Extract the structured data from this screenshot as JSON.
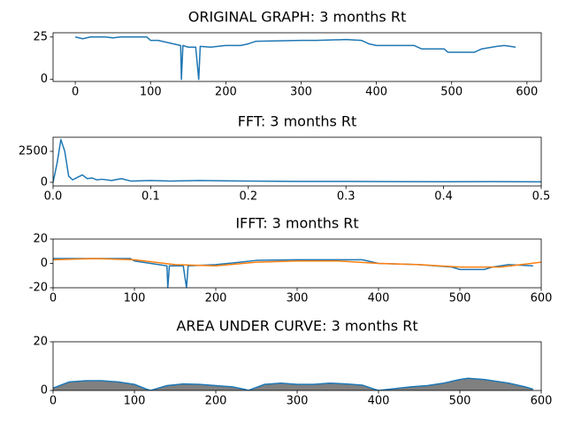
{
  "chart_data": [
    {
      "type": "line",
      "title": "ORIGINAL GRAPH: 3 months Rt",
      "color": "#1f77b4",
      "x": [
        0,
        10,
        20,
        40,
        50,
        60,
        95,
        100,
        110,
        120,
        130,
        140,
        141,
        143,
        150,
        160,
        164,
        166,
        180,
        200,
        220,
        230,
        240,
        300,
        320,
        360,
        380,
        390,
        400,
        450,
        460,
        490,
        495,
        530,
        540,
        560,
        570,
        585
      ],
      "values": [
        25,
        24,
        25,
        25,
        24.5,
        25,
        25,
        23,
        23,
        22,
        21,
        20,
        0,
        20,
        19,
        19,
        0,
        19.5,
        19,
        20,
        20,
        21,
        22.5,
        23,
        23,
        23.5,
        23,
        21,
        20,
        20,
        18,
        18,
        16,
        16,
        18,
        19.5,
        20,
        19
      ],
      "xlim": [
        -29.5,
        619
      ],
      "ylim": [
        -1.2,
        27.5
      ],
      "xticks": [
        0,
        100,
        200,
        300,
        400,
        500,
        600
      ],
      "yticks": [
        0,
        25
      ]
    },
    {
      "type": "line",
      "title": "FFT: 3 months Rt",
      "color": "#1f77b4",
      "x": [
        0,
        0.004,
        0.008,
        0.012,
        0.016,
        0.02,
        0.025,
        0.03,
        0.035,
        0.04,
        0.045,
        0.05,
        0.06,
        0.07,
        0.08,
        0.1,
        0.12,
        0.15,
        0.2,
        0.25,
        0.3,
        0.35,
        0.4,
        0.45,
        0.5
      ],
      "values": [
        0,
        1500,
        3450,
        2500,
        500,
        200,
        400,
        600,
        300,
        350,
        200,
        250,
        150,
        300,
        100,
        150,
        100,
        150,
        100,
        80,
        80,
        60,
        50,
        60,
        40
      ],
      "xlim": [
        0,
        0.5
      ],
      "ylim": [
        -290,
        3640
      ],
      "xticks": [
        {
          "value": 0,
          "label": "0.0"
        },
        0.1,
        0.2,
        0.3,
        0.4,
        0.5
      ],
      "yticks": [
        0,
        2500
      ]
    },
    {
      "type": "line",
      "title": "IFFT: 3 months Rt",
      "series": [
        {
          "color": "#1f77b4",
          "x": [
            0,
            40,
            95,
            100,
            130,
            140,
            141,
            143,
            160,
            164,
            166,
            200,
            230,
            250,
            300,
            380,
            400,
            450,
            490,
            500,
            530,
            540,
            560,
            590
          ],
          "values": [
            4,
            4,
            4,
            2,
            -1,
            -2,
            -20,
            -2,
            -2,
            -20,
            -2,
            -1,
            1,
            2.5,
            3,
            3,
            0,
            -1,
            -3,
            -5,
            -5,
            -3,
            -1,
            -2
          ]
        },
        {
          "color": "#ff7f0e",
          "x": [
            0,
            50,
            100,
            150,
            200,
            250,
            300,
            350,
            400,
            450,
            500,
            550,
            600
          ],
          "values": [
            3,
            4,
            3,
            -1,
            -2,
            1,
            2,
            2,
            0,
            -1,
            -3,
            -3,
            1
          ]
        }
      ],
      "xlim": [
        0,
        600
      ],
      "ylim": [
        -20,
        20
      ],
      "xticks": [
        0,
        100,
        200,
        300,
        400,
        500,
        600
      ],
      "yticks": [
        -20,
        0,
        20
      ]
    },
    {
      "type": "area",
      "title": "AREA UNDER CURVE: 3 months Rt",
      "color": "#1f77b4",
      "fill": "#808080",
      "x": [
        0,
        20,
        40,
        60,
        80,
        100,
        115,
        120,
        140,
        160,
        180,
        200,
        220,
        235,
        240,
        260,
        280,
        300,
        320,
        340,
        360,
        380,
        395,
        400,
        440,
        460,
        480,
        500,
        510,
        530,
        560,
        580,
        590
      ],
      "values": [
        1,
        3.5,
        4,
        4,
        3.5,
        2.5,
        0.5,
        0,
        2,
        2.7,
        2.5,
        2,
        1.5,
        0.5,
        0,
        2.5,
        3,
        2.5,
        2.5,
        3,
        2.7,
        2.2,
        0.5,
        0,
        1.5,
        2,
        3,
        4.5,
        5,
        4.5,
        3,
        1.5,
        0.5
      ],
      "xlim": [
        0,
        600
      ],
      "ylim": [
        0,
        20
      ],
      "xticks": [
        0,
        100,
        200,
        300,
        400,
        500,
        600
      ],
      "yticks": [
        0,
        20
      ]
    }
  ]
}
